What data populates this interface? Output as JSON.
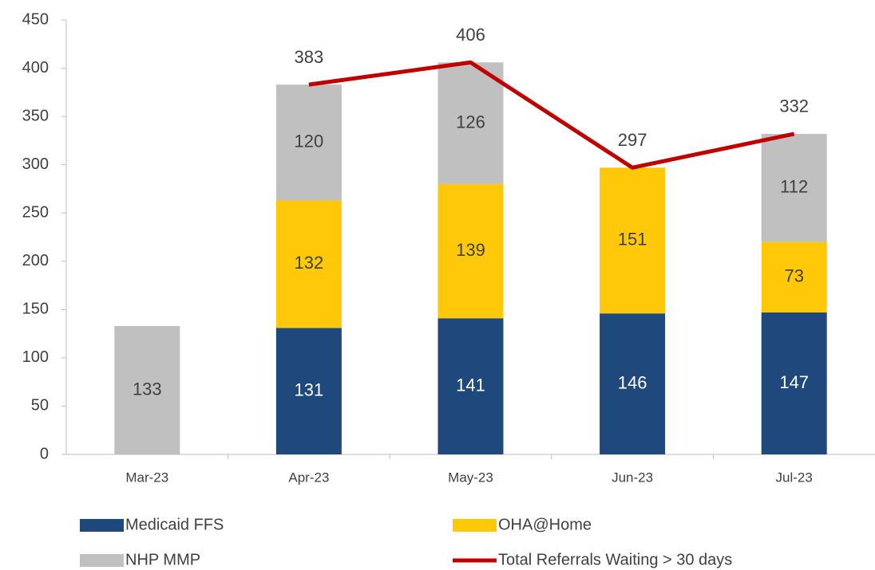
{
  "chart_data": {
    "type": "bar",
    "stacked": true,
    "categories": [
      "Mar-23",
      "Apr-23",
      "May-23",
      "Jun-23",
      "Jul-23"
    ],
    "series": [
      {
        "name": "Medicaid FFS",
        "color": "#1f497d",
        "label_color": "#ffffff",
        "values": [
          null,
          131,
          141,
          146,
          147
        ]
      },
      {
        "name": "OHA@Home",
        "color": "#ffc90a",
        "label_color": "#404040",
        "values": [
          null,
          132,
          139,
          151,
          73
        ]
      },
      {
        "name": "NHP MMP",
        "color": "#c0c0c0",
        "label_color": "#404040",
        "values": [
          133,
          120,
          126,
          null,
          112
        ]
      },
      {
        "name": "Total Referrals Waiting > 30 days",
        "type": "line",
        "color": "#c00000",
        "label_color": "#404040",
        "values": [
          null,
          383,
          406,
          297,
          332
        ]
      }
    ],
    "ylim": [
      0,
      450
    ],
    "yticks": [
      0,
      50,
      100,
      150,
      200,
      250,
      300,
      350,
      400,
      450
    ],
    "grid": false,
    "legend": "bottom"
  }
}
